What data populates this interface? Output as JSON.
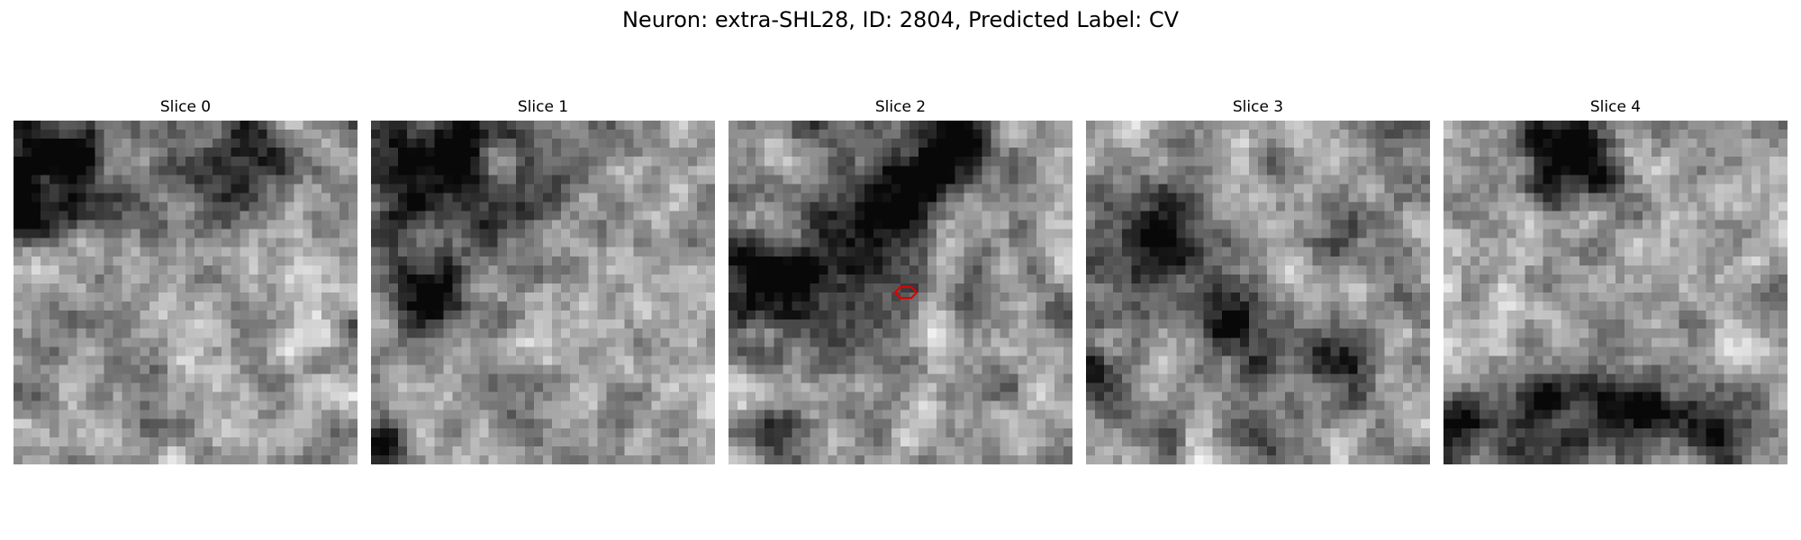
{
  "figure": {
    "title": "Neuron: extra-SHL28, ID: 2804, Predicted Label: CV"
  },
  "slices": [
    {
      "label": "Slice 0",
      "seed": 11,
      "blobs": [
        [
          3,
          4,
          4,
          -0.55
        ],
        [
          22,
          6,
          4,
          -0.45
        ],
        [
          0,
          10,
          2,
          -0.7
        ],
        [
          7,
          8,
          6,
          -0.25
        ],
        [
          28,
          5,
          3,
          -0.3
        ]
      ],
      "marker": false
    },
    {
      "label": "Slice 1",
      "seed": 27,
      "blobs": [
        [
          12,
          5,
          6,
          -0.55
        ],
        [
          2,
          5,
          4,
          -0.45
        ],
        [
          6,
          18,
          3,
          -0.6
        ],
        [
          1,
          35,
          2,
          -0.6
        ],
        [
          14,
          4,
          2,
          0.3
        ]
      ],
      "marker": false
    },
    {
      "label": "Slice 2",
      "seed": 43,
      "blobs": [
        [
          19,
          6,
          5,
          -0.5
        ],
        [
          11,
          16,
          6,
          -0.55
        ],
        [
          3,
          17,
          3,
          -0.5
        ],
        [
          26,
          2,
          3,
          -0.5
        ],
        [
          5,
          35,
          3,
          -0.35
        ]
      ],
      "marker": true
    },
    {
      "label": "Slice 3",
      "seed": 59,
      "blobs": [
        [
          7,
          13,
          4,
          -0.65
        ],
        [
          16,
          22,
          3,
          -0.7
        ],
        [
          0,
          28,
          3,
          -0.4
        ],
        [
          27,
          27,
          3,
          -0.35
        ],
        [
          17,
          33,
          3,
          -0.3
        ]
      ],
      "marker": false
    },
    {
      "label": "Slice 4",
      "seed": 71,
      "blobs": [
        [
          13,
          3,
          4,
          -0.7
        ],
        [
          20,
          31,
          4,
          -0.55
        ],
        [
          2,
          34,
          3,
          -0.5
        ],
        [
          9,
          30,
          3,
          -0.4
        ],
        [
          29,
          33,
          3,
          -0.4
        ]
      ],
      "marker": false
    }
  ],
  "colors": {
    "marker": "#e00000"
  }
}
